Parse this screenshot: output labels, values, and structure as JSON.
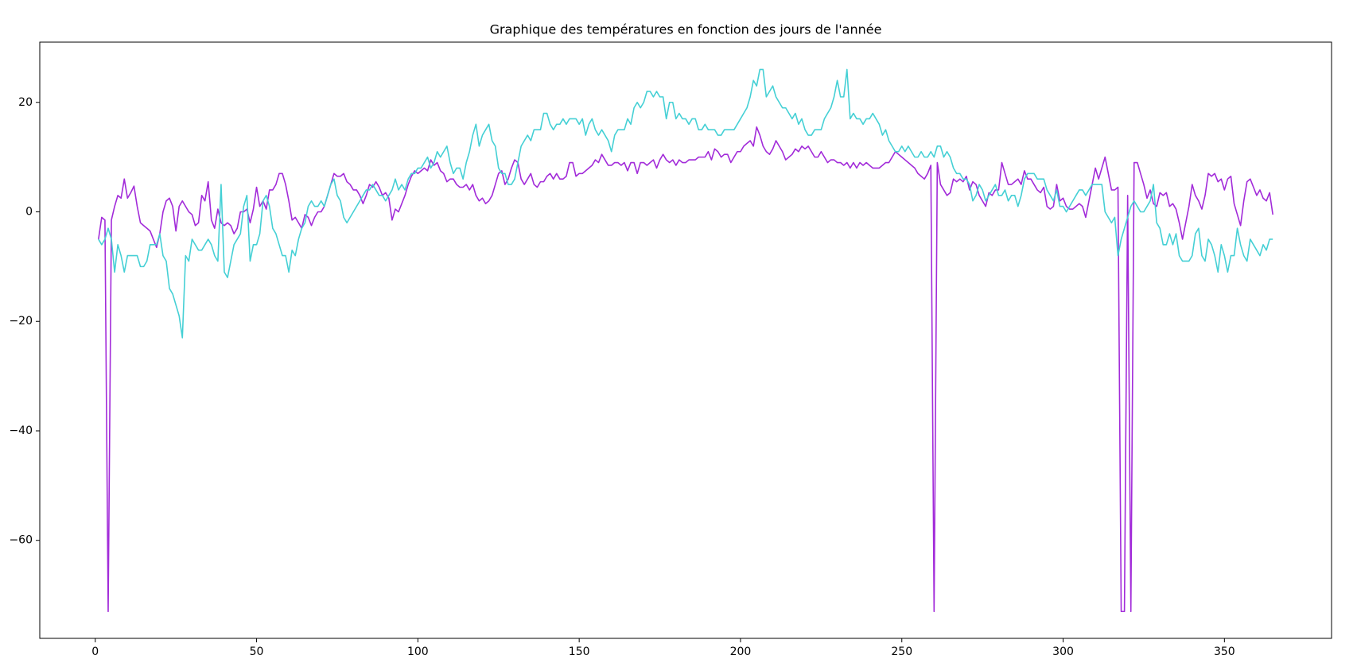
{
  "chart_data": {
    "type": "line",
    "title": "Graphique des températures en fonction des jours de l'année",
    "x": [
      1,
      2,
      3,
      4,
      5,
      6,
      7,
      8,
      9,
      10,
      11,
      12,
      13,
      14,
      15,
      16,
      17,
      18,
      19,
      20,
      21,
      22,
      23,
      24,
      25,
      26,
      27,
      28,
      29,
      30,
      31,
      32,
      33,
      34,
      35,
      36,
      37,
      38,
      39,
      40,
      41,
      42,
      43,
      44,
      45,
      46,
      47,
      48,
      49,
      50,
      51,
      52,
      53,
      54,
      55,
      56,
      57,
      58,
      59,
      60,
      61,
      62,
      63,
      64,
      65,
      66,
      67,
      68,
      69,
      70,
      71,
      72,
      73,
      74,
      75,
      76,
      77,
      78,
      79,
      80,
      81,
      82,
      83,
      84,
      85,
      86,
      87,
      88,
      89,
      90,
      91,
      92,
      93,
      94,
      95,
      96,
      97,
      98,
      99,
      100,
      101,
      102,
      103,
      104,
      105,
      106,
      107,
      108,
      109,
      110,
      111,
      112,
      113,
      114,
      115,
      116,
      117,
      118,
      119,
      120,
      121,
      122,
      123,
      124,
      125,
      126,
      127,
      128,
      129,
      130,
      131,
      132,
      133,
      134,
      135,
      136,
      137,
      138,
      139,
      140,
      141,
      142,
      143,
      144,
      145,
      146,
      147,
      148,
      149,
      150,
      151,
      152,
      153,
      154,
      155,
      156,
      157,
      158,
      159,
      160,
      161,
      162,
      163,
      164,
      165,
      166,
      167,
      168,
      169,
      170,
      171,
      172,
      173,
      174,
      175,
      176,
      177,
      178,
      179,
      180,
      181,
      182,
      183,
      184,
      185,
      186,
      187,
      188,
      189,
      190,
      191,
      192,
      193,
      194,
      195,
      196,
      197,
      198,
      199,
      200,
      201,
      202,
      203,
      204,
      205,
      206,
      207,
      208,
      209,
      210,
      211,
      212,
      213,
      214,
      215,
      216,
      217,
      218,
      219,
      220,
      221,
      222,
      223,
      224,
      225,
      226,
      227,
      228,
      229,
      230,
      231,
      232,
      233,
      234,
      235,
      236,
      237,
      238,
      239,
      240,
      241,
      242,
      243,
      244,
      245,
      246,
      247,
      248,
      249,
      250,
      251,
      252,
      253,
      254,
      255,
      256,
      257,
      258,
      259,
      260,
      261,
      262,
      263,
      264,
      265,
      266,
      267,
      268,
      269,
      270,
      271,
      272,
      273,
      274,
      275,
      276,
      277,
      278,
      279,
      280,
      281,
      282,
      283,
      284,
      285,
      286,
      287,
      288,
      289,
      290,
      291,
      292,
      293,
      294,
      295,
      296,
      297,
      298,
      299,
      300,
      301,
      302,
      303,
      304,
      305,
      306,
      307,
      308,
      309,
      310,
      311,
      312,
      313,
      314,
      315,
      316,
      317,
      318,
      319,
      320,
      321,
      322,
      323,
      324,
      325,
      326,
      327,
      328,
      329,
      330,
      331,
      332,
      333,
      334,
      335,
      336,
      337,
      338,
      339,
      340,
      341,
      342,
      343,
      344,
      345,
      346,
      347,
      348,
      349,
      350,
      351,
      352,
      353,
      354,
      355,
      356,
      357,
      358,
      359,
      360,
      361,
      362,
      363,
      364,
      365
    ],
    "series": [
      {
        "color": "#a22bd9",
        "values": [
          -5,
          -1,
          -1.5,
          -73,
          -1.5,
          1,
          3,
          2.5,
          6,
          2.5,
          3.5,
          4.7,
          1,
          -2,
          -2.5,
          -3,
          -3.5,
          -5,
          -6.5,
          -4,
          0,
          2,
          2.5,
          1,
          -3.5,
          1,
          2,
          1,
          0,
          -0.5,
          -2.5,
          -2,
          3,
          2,
          5.5,
          -1.5,
          -3,
          0.5,
          -2,
          -2.5,
          -2,
          -2.5,
          -4,
          -3,
          0,
          0,
          0.5,
          -2,
          0.5,
          4.5,
          1,
          2,
          0.5,
          4,
          4,
          5,
          7,
          7,
          5,
          2,
          -1.5,
          -1,
          -2,
          -3,
          -0.5,
          -1,
          -2.5,
          -1,
          0,
          0,
          1,
          3,
          5,
          7,
          6.5,
          6.5,
          7,
          5.5,
          5,
          4,
          4,
          3,
          1.5,
          3,
          5,
          4.5,
          5.5,
          4.5,
          3,
          3.5,
          2.5,
          -1.5,
          0.5,
          0,
          1.5,
          3,
          5,
          6.5,
          7.5,
          7,
          7.5,
          8,
          7.5,
          9.5,
          8.5,
          9,
          7.5,
          7,
          5.5,
          6,
          6,
          5,
          4.5,
          4.5,
          5,
          4,
          5,
          3,
          2,
          2.5,
          1.5,
          2,
          3,
          5,
          7,
          7.5,
          5,
          6,
          8,
          9.5,
          9,
          6,
          5,
          6,
          7,
          5,
          4.5,
          5.5,
          5.5,
          6.5,
          7,
          6,
          7,
          6,
          6,
          6.5,
          9,
          9,
          6.5,
          7,
          7,
          7.5,
          8,
          8.5,
          9.5,
          9,
          10.5,
          9.5,
          8.5,
          8.5,
          9,
          9,
          8.5,
          9,
          7.5,
          9,
          9,
          7,
          9,
          9,
          8.5,
          9,
          9.5,
          8,
          9.5,
          10.5,
          9.5,
          9,
          9.5,
          8.5,
          9.5,
          9,
          9,
          9.5,
          9.5,
          9.5,
          10,
          10,
          10,
          11,
          9.5,
          11.5,
          11,
          10,
          10.5,
          10.5,
          9,
          10,
          11,
          11,
          12,
          12.5,
          13,
          12,
          15.5,
          14,
          12,
          11,
          10.5,
          11.5,
          13,
          12,
          11,
          9.5,
          10,
          10.5,
          11.5,
          11,
          12,
          11.5,
          12,
          11,
          10,
          10,
          11,
          10,
          9,
          9.5,
          9.5,
          9,
          9,
          8.5,
          9,
          8,
          9,
          8,
          9,
          8.5,
          9,
          8.5,
          8,
          8,
          8,
          8.5,
          9,
          9,
          10,
          11,
          10.5,
          10,
          9.5,
          9,
          8.5,
          8,
          7,
          6.5,
          6,
          7,
          8.5,
          -73,
          9,
          5,
          4,
          3,
          3.5,
          6,
          5.5,
          6,
          5.5,
          6.5,
          4,
          5.5,
          5,
          3,
          2,
          1,
          3.5,
          3,
          4,
          4,
          9,
          7,
          5,
          5,
          5.5,
          6,
          5,
          7.5,
          6,
          6,
          5,
          4,
          3.5,
          4.5,
          1,
          0.5,
          1,
          5,
          2,
          2.5,
          1,
          0.5,
          0.5,
          1,
          1.5,
          1,
          -1,
          2,
          5,
          8,
          6,
          8,
          10,
          7,
          4,
          4,
          4.5,
          -73,
          -73,
          3,
          -73,
          9,
          9,
          7,
          5,
          2.5,
          4,
          1.5,
          1,
          3.5,
          3,
          3.5,
          1,
          1.5,
          0.5,
          -2,
          -5,
          -2,
          1,
          5,
          3,
          2,
          0.5,
          3,
          7,
          6.5,
          7,
          5.5,
          6,
          4,
          6,
          6.5,
          1.5,
          -0.5,
          -2.5,
          2,
          5.5,
          6,
          4.5,
          3,
          4,
          2.5,
          2,
          3.5,
          -0.5
        ]
      },
      {
        "color": "#45d0d5",
        "values": [
          -5,
          -6,
          -5,
          -3,
          -5,
          -11,
          -6,
          -8,
          -11,
          -8,
          -8,
          -8,
          -8,
          -10,
          -10,
          -9,
          -6,
          -6,
          -6,
          -4,
          -8,
          -9,
          -14,
          -15,
          -17,
          -19,
          -23,
          -8,
          -9,
          -5,
          -6,
          -7,
          -7,
          -6,
          -5,
          -6,
          -8,
          -9,
          5,
          -11,
          -12,
          -9,
          -6,
          -5,
          -4,
          1,
          3,
          -9,
          -6,
          -6,
          -4,
          2,
          3,
          1,
          -3,
          -4,
          -6,
          -8,
          -8,
          -11,
          -7,
          -8,
          -5,
          -3,
          -2,
          1,
          2,
          1,
          1,
          2,
          1,
          3,
          5,
          6,
          3,
          2,
          -1,
          -2,
          -1,
          0,
          1,
          2,
          3,
          4,
          4,
          5,
          4,
          3,
          3,
          2,
          3,
          4,
          6,
          4,
          5,
          4,
          6,
          7,
          7,
          8,
          8,
          9,
          10,
          8,
          9,
          11,
          10,
          11,
          12,
          9,
          7,
          8,
          8,
          6,
          9,
          11,
          14,
          16,
          12,
          14,
          15,
          16,
          13,
          12,
          8,
          7,
          7,
          5,
          5,
          6,
          9,
          12,
          13,
          14,
          13,
          15,
          15,
          15,
          18,
          18,
          16,
          15,
          16,
          16,
          17,
          16,
          17,
          17,
          17,
          16,
          17,
          14,
          16,
          17,
          15,
          14,
          15,
          14,
          13,
          11,
          14,
          15,
          15,
          15,
          17,
          16,
          19,
          20,
          19,
          20,
          22,
          22,
          21,
          22,
          21,
          21,
          17,
          20,
          20,
          17,
          18,
          17,
          17,
          16,
          17,
          17,
          15,
          15,
          16,
          15,
          15,
          15,
          14,
          14,
          15,
          15,
          15,
          15,
          16,
          17,
          18,
          19,
          21,
          24,
          23,
          26,
          26,
          21,
          22,
          23,
          21,
          20,
          19,
          19,
          18,
          17,
          18,
          16,
          17,
          15,
          14,
          14,
          15,
          15,
          15,
          17,
          18,
          19,
          21,
          24,
          21,
          21,
          26,
          17,
          18,
          17,
          17,
          16,
          17,
          17,
          18,
          17,
          16,
          14,
          15,
          13,
          12,
          11,
          11,
          12,
          11,
          12,
          11,
          10,
          10,
          11,
          10,
          10,
          11,
          10,
          12,
          12,
          10,
          11,
          10,
          8,
          7,
          7,
          6,
          6,
          5,
          2,
          3,
          5,
          4,
          2,
          3,
          4,
          5,
          3,
          3,
          4,
          2,
          3,
          3,
          1,
          3,
          6,
          7,
          7,
          7,
          6,
          6,
          6,
          4,
          3,
          2,
          4,
          1,
          1,
          0,
          1,
          2,
          3,
          4,
          4,
          3,
          4,
          5,
          5,
          5,
          5,
          0,
          -1,
          -2,
          -1,
          -8,
          -5,
          -3,
          -1,
          1,
          2,
          1,
          0,
          0,
          1,
          2,
          5,
          -2,
          -3,
          -6,
          -6,
          -4,
          -6,
          -4,
          -8,
          -9,
          -9,
          -9,
          -8,
          -4,
          -3,
          -8,
          -9,
          -5,
          -6,
          -8,
          -11,
          -6,
          -8,
          -11,
          -8,
          -8,
          -3,
          -6,
          -8,
          -9,
          -5,
          -6,
          -7,
          -8,
          -6,
          -7,
          -5,
          -5
        ]
      }
    ],
    "xlim": [
      -17.2,
      383.2
    ],
    "ylim": [
      -77.9,
      31
    ],
    "xticks": [
      0,
      50,
      100,
      150,
      200,
      250,
      300,
      350
    ],
    "yticks": [
      {
        "value": -60,
        "label": "−60"
      },
      {
        "value": -40,
        "label": "−40"
      },
      {
        "value": -20,
        "label": "−20"
      },
      0,
      20
    ],
    "grid": false
  }
}
